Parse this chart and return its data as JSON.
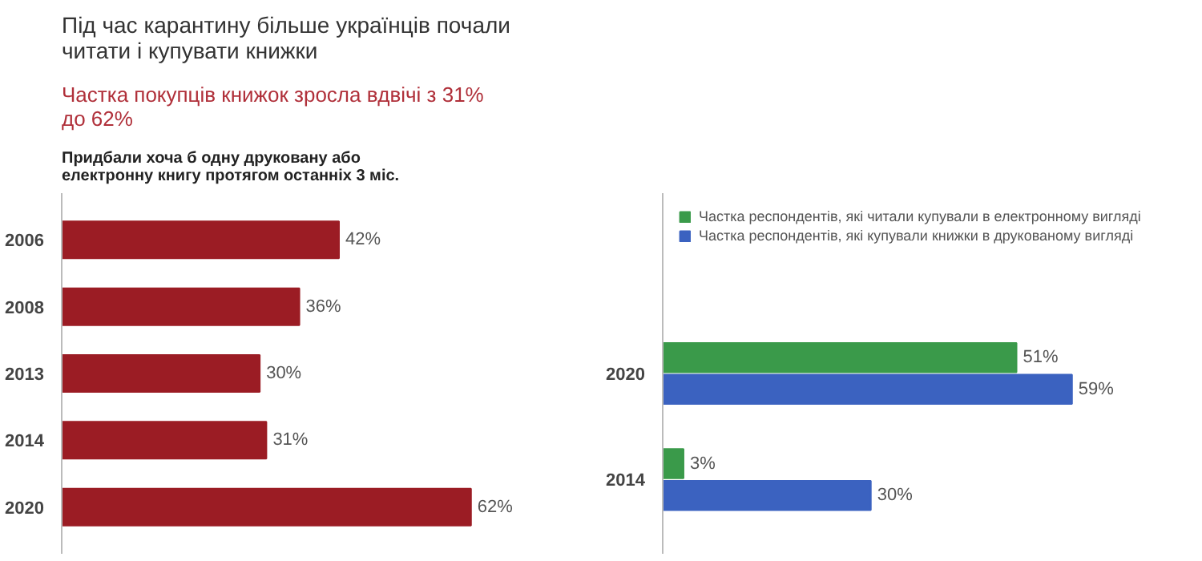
{
  "chart_data": [
    {
      "type": "bar",
      "orientation": "horizontal",
      "title": "Під час карантину більше українців почали\nчитати і купувати книжки",
      "subtitle": "Частка покупців книжок зросла вдвічі з 31%\nдо 62%",
      "annotations": [
        "Придбали хоча б одну друковану або\nелектронну книгу протягом останніх 3 міс."
      ],
      "categories": [
        "2006",
        "2008",
        "2013",
        "2014",
        "2020"
      ],
      "series": [
        {
          "color": "#9b1c24",
          "values": [
            42,
            36,
            30,
            31,
            62
          ],
          "value_labels": [
            "42%",
            "36%",
            "30%",
            "31%",
            "62%"
          ]
        }
      ]
    },
    {
      "type": "bar",
      "orientation": "horizontal",
      "categories": [
        "2020",
        "2014"
      ],
      "legend": "top",
      "series": [
        {
          "name": "Частка респондентів, які читали купували в електронному вигляді",
          "color": "#3a9a4a",
          "values": [
            51,
            3
          ],
          "value_labels": [
            "51%",
            "3%"
          ]
        },
        {
          "name": "Частка респондентів, які купували книжки в друкованому вигляді",
          "color": "#3b62c0",
          "values": [
            59,
            30
          ],
          "value_labels": [
            "59%",
            "30%"
          ]
        }
      ]
    }
  ]
}
